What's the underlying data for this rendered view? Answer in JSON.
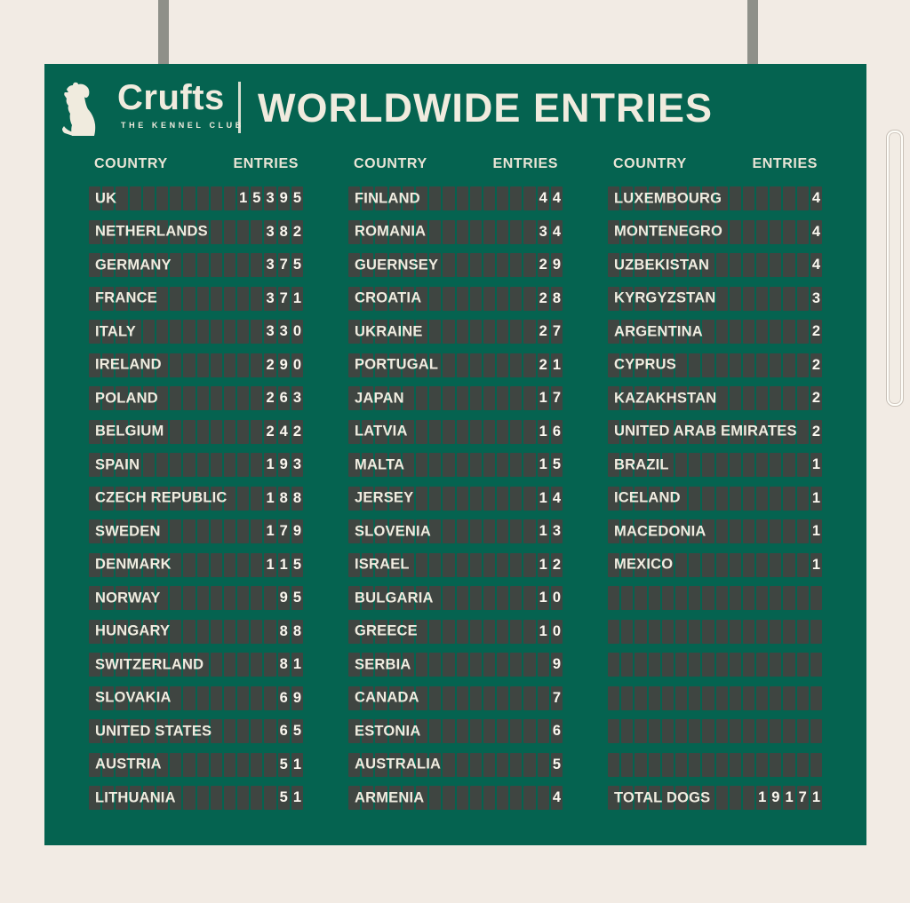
{
  "colors": {
    "page_background": "#f2ebe4",
    "board_green": "#056350",
    "flap_cell": "#3f4541",
    "text_cream": "#f0ebde",
    "digit_white": "#faf7ef",
    "post_gray": "#8f9089"
  },
  "header": {
    "logo": {
      "brand": "Crufts",
      "tagline": "THE KENNEL CLUB"
    },
    "title": "WORLDWIDE ENTRIES"
  },
  "columns_header": {
    "country": "COUNTRY",
    "entries": "ENTRIES"
  },
  "board": {
    "columns": [
      {
        "rows": [
          {
            "label": "UK",
            "value": "15395"
          },
          {
            "label": "NETHERLANDS",
            "value": "382"
          },
          {
            "label": "GERMANY",
            "value": "375"
          },
          {
            "label": "FRANCE",
            "value": "371"
          },
          {
            "label": "ITALY",
            "value": "330"
          },
          {
            "label": "IRELAND",
            "value": "290"
          },
          {
            "label": "POLAND",
            "value": "263"
          },
          {
            "label": "BELGIUM",
            "value": "242"
          },
          {
            "label": "SPAIN",
            "value": "193"
          },
          {
            "label": "CZECH REPUBLIC",
            "value": "188"
          },
          {
            "label": "SWEDEN",
            "value": "179"
          },
          {
            "label": "DENMARK",
            "value": "115"
          },
          {
            "label": "NORWAY",
            "value": "95"
          },
          {
            "label": "HUNGARY",
            "value": "88"
          },
          {
            "label": "SWITZERLAND",
            "value": "81"
          },
          {
            "label": "SLOVAKIA",
            "value": "69"
          },
          {
            "label": "UNITED STATES",
            "value": "65"
          },
          {
            "label": "AUSTRIA",
            "value": "51"
          },
          {
            "label": "LITHUANIA",
            "value": "51"
          }
        ]
      },
      {
        "rows": [
          {
            "label": "FINLAND",
            "value": "44"
          },
          {
            "label": "ROMANIA",
            "value": "34"
          },
          {
            "label": "GUERNSEY",
            "value": "29"
          },
          {
            "label": "CROATIA",
            "value": "28"
          },
          {
            "label": "UKRAINE",
            "value": "27"
          },
          {
            "label": "PORTUGAL",
            "value": "21"
          },
          {
            "label": "JAPAN",
            "value": "17"
          },
          {
            "label": "LATVIA",
            "value": "16"
          },
          {
            "label": "MALTA",
            "value": "15"
          },
          {
            "label": "JERSEY",
            "value": "14"
          },
          {
            "label": "SLOVENIA",
            "value": "13"
          },
          {
            "label": "ISRAEL",
            "value": "12"
          },
          {
            "label": "BULGARIA",
            "value": "10"
          },
          {
            "label": "GREECE",
            "value": "10"
          },
          {
            "label": "SERBIA",
            "value": "9"
          },
          {
            "label": "CANADA",
            "value": "7"
          },
          {
            "label": "ESTONIA",
            "value": "6"
          },
          {
            "label": "AUSTRALIA",
            "value": "5"
          },
          {
            "label": "ARMENIA",
            "value": "4"
          }
        ]
      },
      {
        "rows": [
          {
            "label": "LUXEMBOURG",
            "value": "4"
          },
          {
            "label": "MONTENEGRO",
            "value": "4"
          },
          {
            "label": "UZBEKISTAN",
            "value": "4"
          },
          {
            "label": "KYRGYZSTAN",
            "value": "3"
          },
          {
            "label": "ARGENTINA",
            "value": "2"
          },
          {
            "label": "CYPRUS",
            "value": "2"
          },
          {
            "label": "KAZAKHSTAN",
            "value": "2"
          },
          {
            "label": "UNITED ARAB EMIRATES",
            "value": "2"
          },
          {
            "label": "BRAZIL",
            "value": "1"
          },
          {
            "label": "ICELAND",
            "value": "1"
          },
          {
            "label": "MACEDONIA",
            "value": "1"
          },
          {
            "label": "MEXICO",
            "value": "1"
          },
          {
            "label": "",
            "value": ""
          },
          {
            "label": "",
            "value": ""
          },
          {
            "label": "",
            "value": ""
          },
          {
            "label": "",
            "value": ""
          },
          {
            "label": "",
            "value": ""
          },
          {
            "label": "",
            "value": ""
          },
          {
            "label": "TOTAL DOGS",
            "value": "19171"
          }
        ]
      }
    ]
  }
}
